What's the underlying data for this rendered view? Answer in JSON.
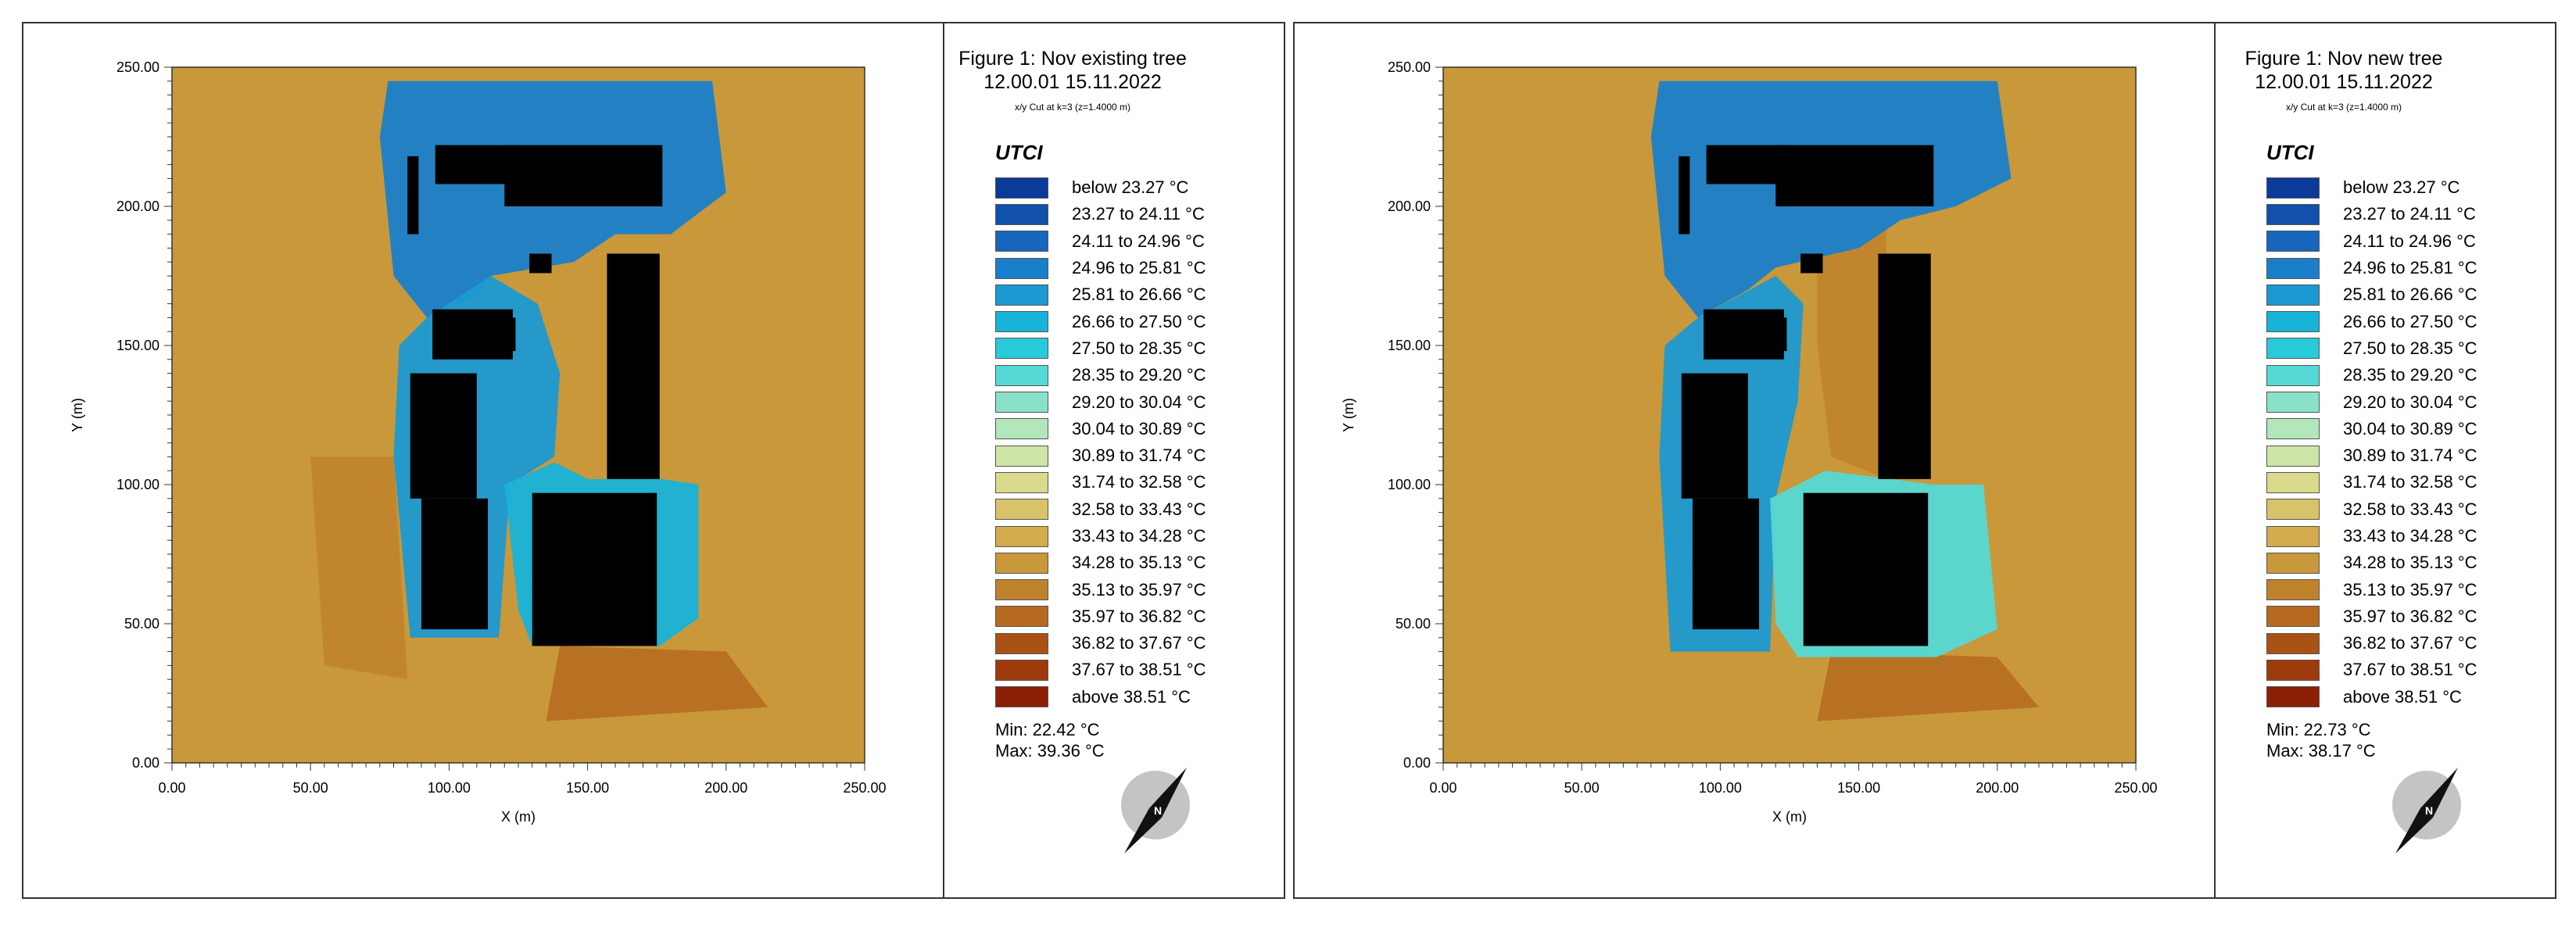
{
  "panels": [
    {
      "title": "Figure 1: Nov existing tree",
      "datetime": "12.00.01 15.11.2022",
      "subtitle": "x/y Cut at k=3 (z=1.4000 m)",
      "variable": "UTCI",
      "min_label": "Min: 22.42 °C",
      "max_label": "Max: 39.36 °C",
      "compass_label": "N"
    },
    {
      "title": "Figure 1: Nov new tree",
      "datetime": "12.00.01 15.11.2022",
      "subtitle": "x/y Cut at k=3 (z=1.4000 m)",
      "variable": "UTCI",
      "min_label": "Min: 22.73 °C",
      "max_label": "Max: 38.17 °C",
      "compass_label": "N"
    }
  ],
  "legend": [
    {
      "label": "below 23.27 °C",
      "color": "#0a3a9a"
    },
    {
      "label": "23.27 to 24.11 °C",
      "color": "#1150ab"
    },
    {
      "label": "24.11 to 24.96 °C",
      "color": "#1566bc"
    },
    {
      "label": "24.96 to 25.81 °C",
      "color": "#1a7fca"
    },
    {
      "label": "25.81 to 26.66 °C",
      "color": "#1b99d2"
    },
    {
      "label": "26.66 to 27.50 °C",
      "color": "#17b3d8"
    },
    {
      "label": "27.50 to 28.35 °C",
      "color": "#27cbd9"
    },
    {
      "label": "28.35 to 29.20 °C",
      "color": "#55d9d4"
    },
    {
      "label": "29.20 to 30.04 °C",
      "color": "#8ae1c9"
    },
    {
      "label": "30.04 to 30.89 °C",
      "color": "#b2e6bb"
    },
    {
      "label": "30.89 to 31.74 °C",
      "color": "#cde5a7"
    },
    {
      "label": "31.74 to 32.58 °C",
      "color": "#d9da8c"
    },
    {
      "label": "32.58 to 33.43 °C",
      "color": "#d9c36a"
    },
    {
      "label": "33.43 to 34.28 °C",
      "color": "#d2ac4c"
    },
    {
      "label": "34.28 to 35.13 °C",
      "color": "#c9983a"
    },
    {
      "label": "35.13 to 35.97 °C",
      "color": "#bf822c"
    },
    {
      "label": "35.97 to 36.82 °C",
      "color": "#b56a20"
    },
    {
      "label": "36.82 to 37.67 °C",
      "color": "#aa5215"
    },
    {
      "label": "37.67 to 38.51 °C",
      "color": "#9e3a0c"
    },
    {
      "label": "above 38.51 °C",
      "color": "#8c1e06"
    }
  ],
  "chart_data": [
    {
      "type": "heatmap",
      "xlabel": "X (m)",
      "ylabel": "Y (m)",
      "xlim": [
        0,
        250
      ],
      "ylim": [
        0,
        250
      ],
      "x_ticks": [
        "0.00",
        "50.00",
        "100.00",
        "150.00",
        "200.00",
        "250.00"
      ],
      "y_ticks": [
        "0.00",
        "50.00",
        "100.00",
        "150.00",
        "200.00",
        "250.00"
      ],
      "background_color": "#c9983a",
      "buildings": [
        [
          85,
          190,
          89,
          218
        ],
        [
          120,
          200,
          177,
          222
        ],
        [
          95,
          208,
          125,
          222
        ],
        [
          94,
          145,
          123,
          163
        ],
        [
          106,
          148,
          124,
          160
        ],
        [
          86,
          95,
          110,
          140
        ],
        [
          90,
          48,
          114,
          95
        ],
        [
          130,
          42,
          175,
          97
        ],
        [
          157,
          102,
          176,
          183
        ],
        [
          129,
          176,
          137,
          183
        ]
      ],
      "cool_zones": [
        {
          "points": [
            [
              78,
              245
            ],
            [
              195,
              245
            ],
            [
              200,
              205
            ],
            [
              180,
              190
            ],
            [
              160,
              190
            ],
            [
              145,
              180
            ],
            [
              115,
              175
            ],
            [
              110,
              168
            ],
            [
              92,
              160
            ],
            [
              80,
              175
            ],
            [
              75,
              225
            ]
          ],
          "color": "#1a7fca"
        },
        {
          "points": [
            [
              92,
              160
            ],
            [
              115,
              175
            ],
            [
              132,
              165
            ],
            [
              140,
              140
            ],
            [
              138,
              110
            ],
            [
              122,
              100
            ],
            [
              118,
              45
            ],
            [
              86,
              45
            ],
            [
              80,
              110
            ],
            [
              82,
              150
            ]
          ],
          "color": "#1b99d2"
        },
        {
          "points": [
            [
              120,
              100
            ],
            [
              138,
              108
            ],
            [
              150,
              102
            ],
            [
              177,
              102
            ],
            [
              190,
              100
            ],
            [
              190,
              52
            ],
            [
              176,
              42
            ],
            [
              130,
              42
            ],
            [
              125,
              55
            ]
          ],
          "color": "#17b3d8"
        }
      ],
      "warm_zones": [
        {
          "points": [
            [
              50,
              110
            ],
            [
              80,
              110
            ],
            [
              85,
              30
            ],
            [
              55,
              35
            ]
          ],
          "color": "#bf822c"
        },
        {
          "points": [
            [
              140,
              42
            ],
            [
              200,
              40
            ],
            [
              215,
              20
            ],
            [
              135,
              15
            ]
          ],
          "color": "#b56a20"
        }
      ],
      "min": 22.42,
      "max": 39.36
    },
    {
      "type": "heatmap",
      "xlabel": "X (m)",
      "ylabel": "Y (m)",
      "xlim": [
        0,
        250
      ],
      "ylim": [
        0,
        250
      ],
      "x_ticks": [
        "0.00",
        "50.00",
        "100.00",
        "150.00",
        "200.00",
        "250.00"
      ],
      "y_ticks": [
        "0.00",
        "50.00",
        "100.00",
        "150.00",
        "200.00",
        "250.00"
      ],
      "background_color": "#c9983a",
      "buildings": [
        [
          85,
          190,
          89,
          218
        ],
        [
          120,
          200,
          177,
          222
        ],
        [
          95,
          208,
          125,
          222
        ],
        [
          94,
          145,
          123,
          163
        ],
        [
          106,
          148,
          124,
          160
        ],
        [
          86,
          95,
          110,
          140
        ],
        [
          90,
          48,
          114,
          95
        ],
        [
          130,
          42,
          175,
          97
        ],
        [
          157,
          102,
          176,
          183
        ],
        [
          129,
          176,
          137,
          183
        ]
      ],
      "cool_zones": [
        {
          "points": [
            [
              78,
              245
            ],
            [
              200,
              245
            ],
            [
              205,
              210
            ],
            [
              185,
              200
            ],
            [
              165,
              195
            ],
            [
              150,
              185
            ],
            [
              120,
              178
            ],
            [
              110,
              170
            ],
            [
              92,
              160
            ],
            [
              80,
              175
            ],
            [
              75,
              225
            ]
          ],
          "color": "#1a7fca"
        },
        {
          "points": [
            [
              92,
              160
            ],
            [
              120,
              175
            ],
            [
              130,
              165
            ],
            [
              128,
              130
            ],
            [
              120,
              95
            ],
            [
              118,
              40
            ],
            [
              82,
              40
            ],
            [
              78,
              110
            ],
            [
              80,
              150
            ]
          ],
          "color": "#1b99d2"
        },
        {
          "points": [
            [
              118,
              95
            ],
            [
              138,
              105
            ],
            [
              177,
              100
            ],
            [
              195,
              100
            ],
            [
              200,
              48
            ],
            [
              178,
              38
            ],
            [
              128,
              38
            ],
            [
              120,
              50
            ]
          ],
          "color": "#55d9d4"
        }
      ],
      "warm_zones": [
        {
          "points": [
            [
              135,
              195
            ],
            [
              160,
              195
            ],
            [
              160,
              102
            ],
            [
              140,
              110
            ],
            [
              135,
              150
            ]
          ],
          "color": "#bf822c"
        },
        {
          "points": [
            [
              140,
              40
            ],
            [
              200,
              38
            ],
            [
              215,
              20
            ],
            [
              135,
              15
            ]
          ],
          "color": "#b56a20"
        }
      ],
      "min": 22.73,
      "max": 38.17
    }
  ]
}
